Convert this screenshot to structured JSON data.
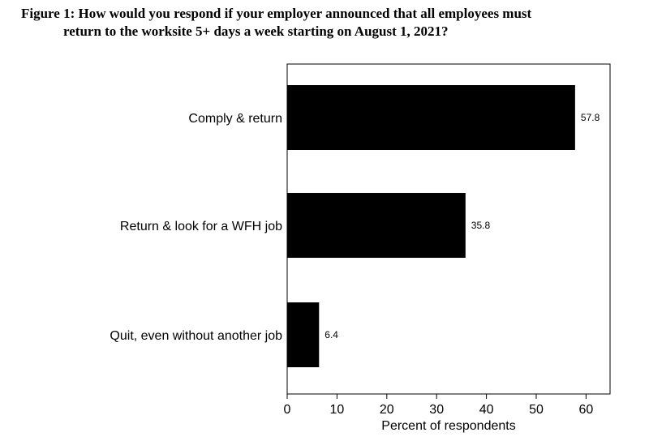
{
  "chart_data": {
    "type": "bar",
    "orientation": "horizontal",
    "title_line1": "Figure 1: How would you respond if your employer announced that all employees must",
    "title_line2": "return to the worksite 5+ days a week starting on August 1, 2021?",
    "categories": [
      "Comply & return",
      "Return & look for a WFH job",
      "Quit, even without another job"
    ],
    "values": [
      57.8,
      35.8,
      6.4
    ],
    "value_labels": [
      "57.8",
      "35.8",
      "6.4"
    ],
    "xlabel": "Percent of respondents",
    "ylabel": "",
    "xlim": [
      0,
      65
    ],
    "xticks": [
      "0",
      "10",
      "20",
      "30",
      "40",
      "50",
      "60"
    ],
    "bar_color": "#000000",
    "grid": false
  }
}
